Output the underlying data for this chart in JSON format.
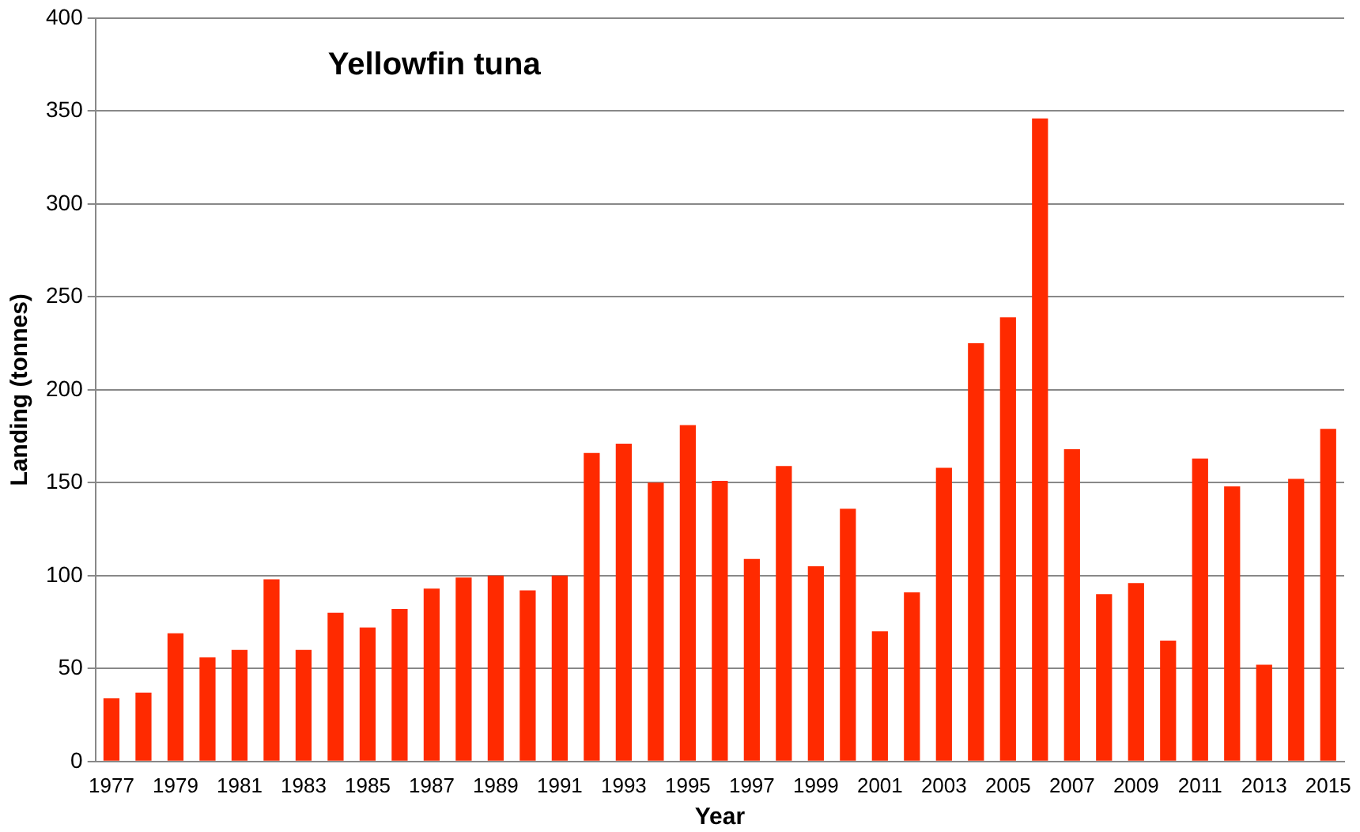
{
  "chart_data": {
    "type": "bar",
    "title": "Yellowfin tuna",
    "xlabel": "Year",
    "ylabel": "Landing (tonnes)",
    "categories": [
      "1977",
      null,
      "1979",
      null,
      "1981",
      null,
      "1983",
      null,
      "1985",
      null,
      "1987",
      null,
      "1989",
      null,
      "1991",
      null,
      "1993",
      null,
      "1995",
      null,
      "1997",
      null,
      "1999",
      null,
      "2001",
      null,
      "2003",
      null,
      "2005",
      null,
      "2007",
      null,
      "2009",
      null,
      "2011",
      null,
      "2013",
      null,
      "2015"
    ],
    "values": [
      34,
      37,
      69,
      56,
      60,
      98,
      60,
      80,
      72,
      82,
      93,
      99,
      100,
      92,
      100,
      166,
      171,
      150,
      181,
      151,
      109,
      159,
      105,
      136,
      70,
      91,
      158,
      225,
      239,
      346,
      168,
      90,
      96,
      65,
      163,
      148,
      52,
      152,
      179
    ],
    "color": "#ff2a00",
    "ylim": [
      0,
      400
    ],
    "yticks": [
      0,
      50,
      100,
      150,
      200,
      250,
      300,
      350,
      400
    ],
    "grid": "y"
  }
}
